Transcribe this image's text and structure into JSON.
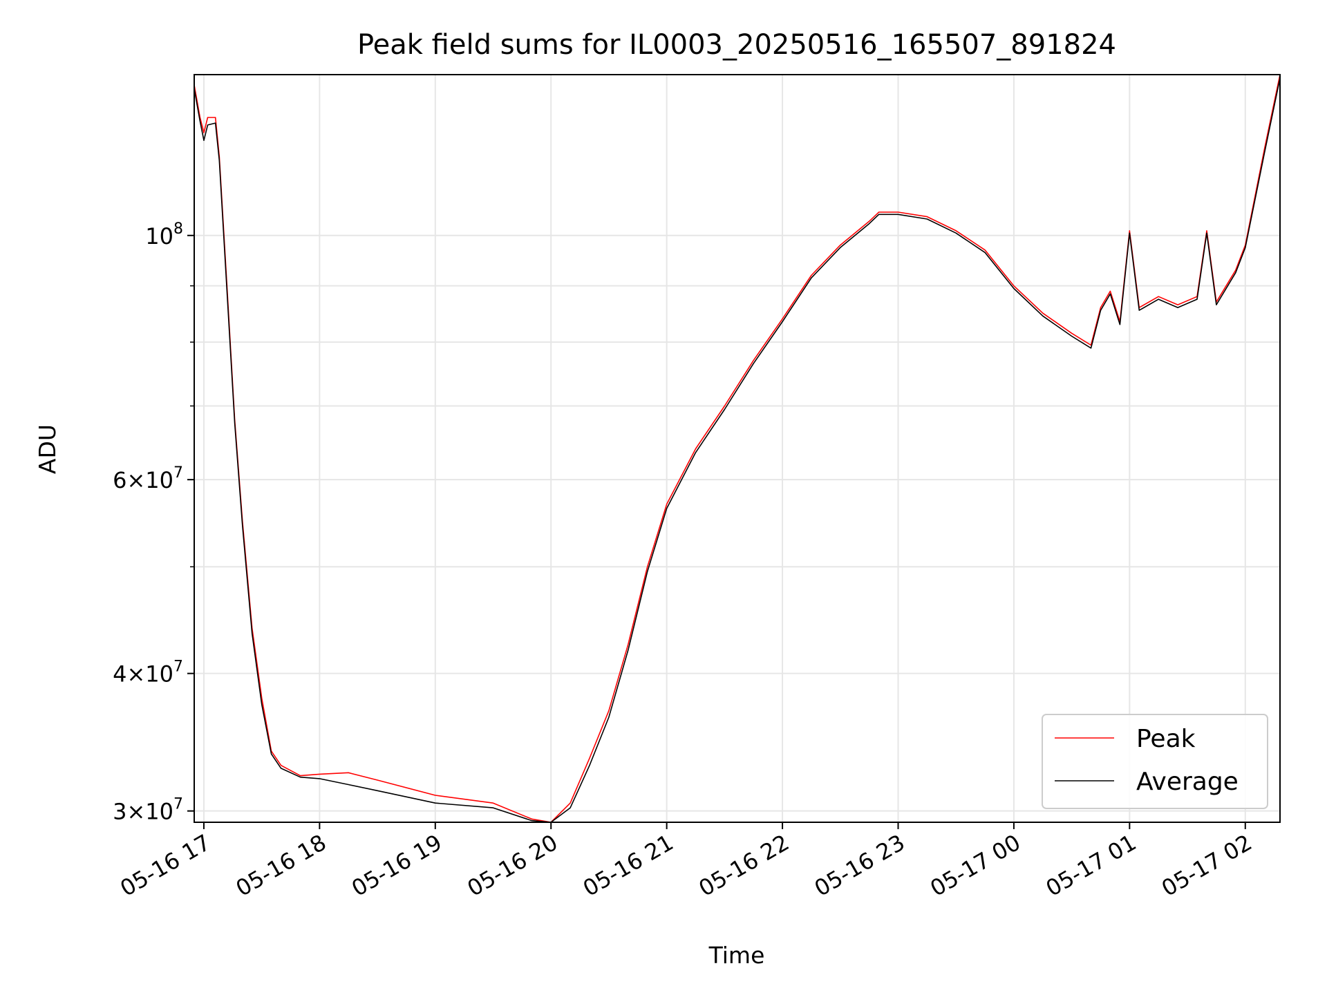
{
  "chart_data": {
    "type": "line",
    "title": "Peak field sums for IL0003_20250516_165507_891824",
    "xlabel": "Time",
    "ylabel": "ADU",
    "y_scale": "log",
    "ylim": [
      29300000,
      140000000
    ],
    "xlim": [
      "2025-05-16 16:55",
      "2025-05-17 02:18"
    ],
    "grid": true,
    "legend_position": "lower-right",
    "x_ticks": [
      {
        "t": "2025-05-16 17:00",
        "label": "05-16 17"
      },
      {
        "t": "2025-05-16 18:00",
        "label": "05-16 18"
      },
      {
        "t": "2025-05-16 19:00",
        "label": "05-16 19"
      },
      {
        "t": "2025-05-16 20:00",
        "label": "05-16 20"
      },
      {
        "t": "2025-05-16 21:00",
        "label": "05-16 21"
      },
      {
        "t": "2025-05-16 22:00",
        "label": "05-16 22"
      },
      {
        "t": "2025-05-16 23:00",
        "label": "05-16 23"
      },
      {
        "t": "2025-05-17 00:00",
        "label": "05-17 00"
      },
      {
        "t": "2025-05-17 01:00",
        "label": "05-17 01"
      },
      {
        "t": "2025-05-17 02:00",
        "label": "05-17 02"
      }
    ],
    "y_major_ticks": [
      {
        "v": 30000000,
        "mant": "3",
        "exp": "7"
      },
      {
        "v": 40000000,
        "mant": "4",
        "exp": "7"
      },
      {
        "v": 60000000,
        "mant": "6",
        "exp": "7"
      },
      {
        "v": 100000000,
        "mant": "",
        "exp": "8"
      }
    ],
    "y_minor_ticks": [
      50000000,
      70000000,
      80000000,
      90000000
    ],
    "series": [
      {
        "name": "Peak",
        "color": "#ff0000",
        "points": [
          [
            "2025-05-16 16:55",
            137000000
          ],
          [
            "2025-05-16 16:58",
            128000000
          ],
          [
            "2025-05-16 17:00",
            124000000
          ],
          [
            "2025-05-16 17:02",
            128000000
          ],
          [
            "2025-05-16 17:06",
            128000000
          ],
          [
            "2025-05-16 17:08",
            118000000
          ],
          [
            "2025-05-16 17:12",
            90000000
          ],
          [
            "2025-05-16 17:16",
            68000000
          ],
          [
            "2025-05-16 17:20",
            55000000
          ],
          [
            "2025-05-16 17:25",
            44000000
          ],
          [
            "2025-05-16 17:30",
            38000000
          ],
          [
            "2025-05-16 17:35",
            34000000
          ],
          [
            "2025-05-16 17:40",
            33000000
          ],
          [
            "2025-05-16 17:50",
            32300000
          ],
          [
            "2025-05-16 18:00",
            32400000
          ],
          [
            "2025-05-16 18:15",
            32500000
          ],
          [
            "2025-05-16 18:30",
            32000000
          ],
          [
            "2025-05-16 19:00",
            31000000
          ],
          [
            "2025-05-16 19:30",
            30500000
          ],
          [
            "2025-05-16 19:50",
            29500000
          ],
          [
            "2025-05-16 20:00",
            29300000
          ],
          [
            "2025-05-16 20:10",
            30500000
          ],
          [
            "2025-05-16 20:20",
            33500000
          ],
          [
            "2025-05-16 20:30",
            37000000
          ],
          [
            "2025-05-16 20:40",
            42500000
          ],
          [
            "2025-05-16 20:50",
            50000000
          ],
          [
            "2025-05-16 21:00",
            57000000
          ],
          [
            "2025-05-16 21:15",
            64000000
          ],
          [
            "2025-05-16 21:30",
            70000000
          ],
          [
            "2025-05-16 21:45",
            77000000
          ],
          [
            "2025-05-16 22:00",
            84000000
          ],
          [
            "2025-05-16 22:15",
            92000000
          ],
          [
            "2025-05-16 22:30",
            98000000
          ],
          [
            "2025-05-16 22:45",
            103000000
          ],
          [
            "2025-05-16 22:50",
            105000000
          ],
          [
            "2025-05-16 23:00",
            105000000
          ],
          [
            "2025-05-16 23:15",
            104000000
          ],
          [
            "2025-05-16 23:30",
            101000000
          ],
          [
            "2025-05-16 23:45",
            97000000
          ],
          [
            "2025-05-17 00:00",
            90000000
          ],
          [
            "2025-05-17 00:15",
            85000000
          ],
          [
            "2025-05-17 00:30",
            81500000
          ],
          [
            "2025-05-17 00:40",
            79500000
          ],
          [
            "2025-05-17 00:45",
            86000000
          ],
          [
            "2025-05-17 00:50",
            89000000
          ],
          [
            "2025-05-17 00:55",
            83500000
          ],
          [
            "2025-05-17 01:00",
            101000000
          ],
          [
            "2025-05-17 01:05",
            86000000
          ],
          [
            "2025-05-17 01:15",
            88000000
          ],
          [
            "2025-05-17 01:25",
            86500000
          ],
          [
            "2025-05-17 01:35",
            88000000
          ],
          [
            "2025-05-17 01:40",
            101000000
          ],
          [
            "2025-05-17 01:45",
            87000000
          ],
          [
            "2025-05-17 01:55",
            93000000
          ],
          [
            "2025-05-17 02:00",
            98000000
          ],
          [
            "2025-05-17 02:10",
            120000000
          ],
          [
            "2025-05-17 02:18",
            140000000
          ]
        ]
      },
      {
        "name": "Average",
        "color": "#000000",
        "points": [
          [
            "2025-05-16 16:55",
            136000000
          ],
          [
            "2025-05-16 16:58",
            127000000
          ],
          [
            "2025-05-16 17:00",
            122000000
          ],
          [
            "2025-05-16 17:02",
            126000000
          ],
          [
            "2025-05-16 17:06",
            126500000
          ],
          [
            "2025-05-16 17:08",
            117000000
          ],
          [
            "2025-05-16 17:12",
            89000000
          ],
          [
            "2025-05-16 17:16",
            67500000
          ],
          [
            "2025-05-16 17:20",
            54500000
          ],
          [
            "2025-05-16 17:25",
            43500000
          ],
          [
            "2025-05-16 17:30",
            37500000
          ],
          [
            "2025-05-16 17:35",
            33800000
          ],
          [
            "2025-05-16 17:40",
            32800000
          ],
          [
            "2025-05-16 17:50",
            32200000
          ],
          [
            "2025-05-16 18:00",
            32100000
          ],
          [
            "2025-05-16 18:15",
            31700000
          ],
          [
            "2025-05-16 18:30",
            31300000
          ],
          [
            "2025-05-16 19:00",
            30500000
          ],
          [
            "2025-05-16 19:30",
            30200000
          ],
          [
            "2025-05-16 19:50",
            29400000
          ],
          [
            "2025-05-16 20:00",
            29300000
          ],
          [
            "2025-05-16 20:10",
            30200000
          ],
          [
            "2025-05-16 20:20",
            33000000
          ],
          [
            "2025-05-16 20:30",
            36500000
          ],
          [
            "2025-05-16 20:40",
            42000000
          ],
          [
            "2025-05-16 20:50",
            49500000
          ],
          [
            "2025-05-16 21:00",
            56500000
          ],
          [
            "2025-05-16 21:15",
            63500000
          ],
          [
            "2025-05-16 21:30",
            69500000
          ],
          [
            "2025-05-16 21:45",
            76500000
          ],
          [
            "2025-05-16 22:00",
            83500000
          ],
          [
            "2025-05-16 22:15",
            91500000
          ],
          [
            "2025-05-16 22:30",
            97500000
          ],
          [
            "2025-05-16 22:45",
            102500000
          ],
          [
            "2025-05-16 22:50",
            104500000
          ],
          [
            "2025-05-16 23:00",
            104500000
          ],
          [
            "2025-05-16 23:15",
            103500000
          ],
          [
            "2025-05-16 23:30",
            100500000
          ],
          [
            "2025-05-16 23:45",
            96500000
          ],
          [
            "2025-05-17 00:00",
            89500000
          ],
          [
            "2025-05-17 00:15",
            84500000
          ],
          [
            "2025-05-17 00:30",
            81000000
          ],
          [
            "2025-05-17 00:40",
            79000000
          ],
          [
            "2025-05-17 00:45",
            85500000
          ],
          [
            "2025-05-17 00:50",
            88500000
          ],
          [
            "2025-05-17 00:55",
            83000000
          ],
          [
            "2025-05-17 01:00",
            100500000
          ],
          [
            "2025-05-17 01:05",
            85500000
          ],
          [
            "2025-05-17 01:15",
            87500000
          ],
          [
            "2025-05-17 01:25",
            86000000
          ],
          [
            "2025-05-17 01:35",
            87500000
          ],
          [
            "2025-05-17 01:40",
            100500000
          ],
          [
            "2025-05-17 01:45",
            86500000
          ],
          [
            "2025-05-17 01:55",
            92500000
          ],
          [
            "2025-05-17 02:00",
            97500000
          ],
          [
            "2025-05-17 02:10",
            119000000
          ],
          [
            "2025-05-17 02:18",
            139000000
          ]
        ]
      }
    ]
  },
  "legend": {
    "items": [
      {
        "label": "Peak",
        "color": "#ff0000"
      },
      {
        "label": "Average",
        "color": "#000000"
      }
    ]
  }
}
